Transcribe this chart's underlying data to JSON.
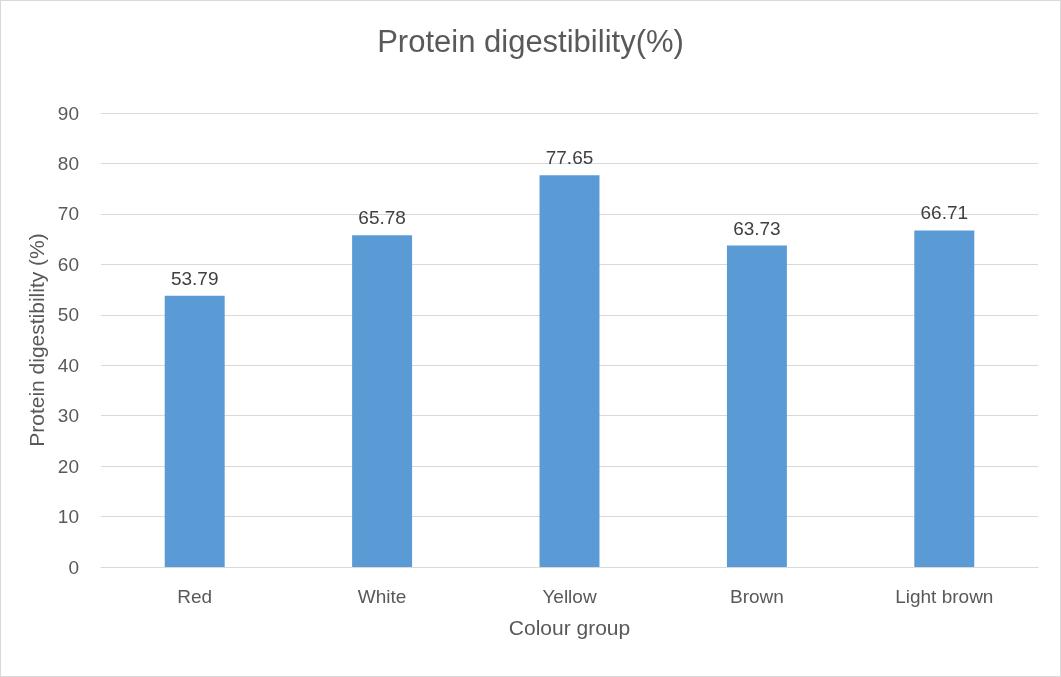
{
  "chart_data": {
    "type": "bar",
    "title": "Protein digestibility(%)",
    "xlabel": "Colour group",
    "ylabel": "Protein digestibility (%)",
    "categories": [
      "Red",
      "White",
      "Yellow",
      "Brown",
      "Light brown"
    ],
    "values": [
      53.79,
      65.78,
      77.65,
      63.73,
      66.71
    ],
    "color": "#5b9bd5",
    "ylim": [
      0,
      90
    ],
    "yticks": [
      0,
      10,
      20,
      30,
      40,
      50,
      60,
      70,
      80,
      90
    ],
    "grid": "y",
    "data_labels": true
  }
}
